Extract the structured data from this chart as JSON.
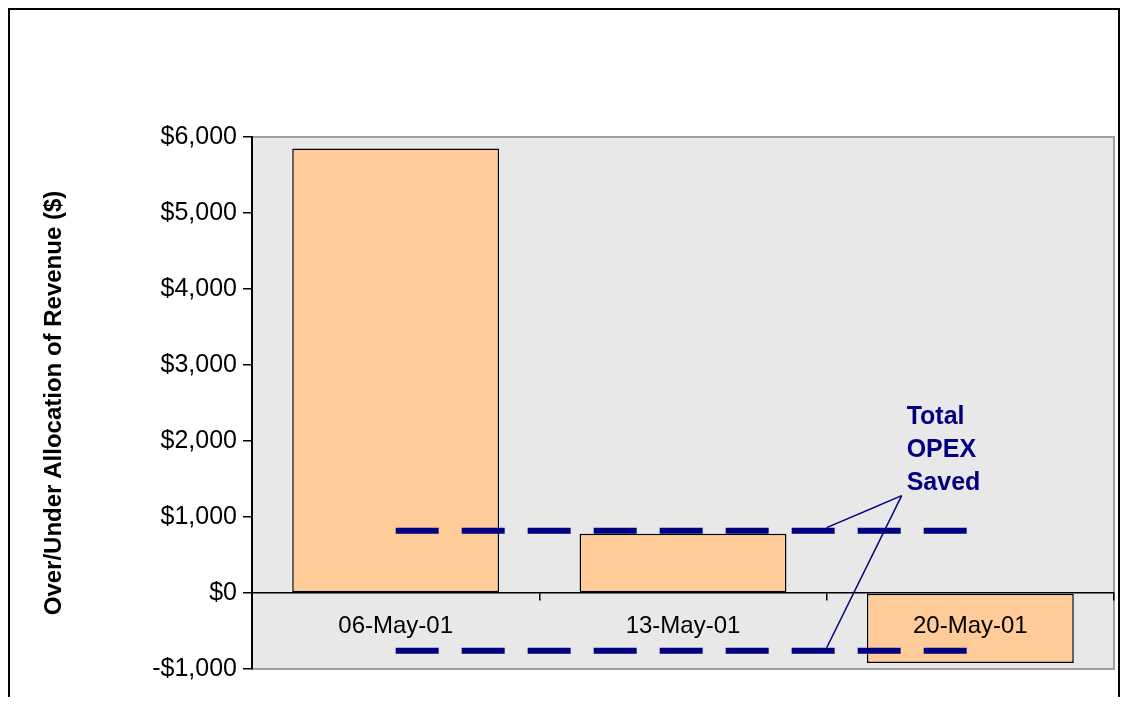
{
  "chart_data": {
    "type": "bar",
    "ylabel": "Over/Under Allocation of Revenue ($)",
    "categories": [
      "06-May-01",
      "13-May-01",
      "20-May-01"
    ],
    "series": [
      {
        "color": "#ffcc99",
        "values": [
          5850,
          780,
          -920
        ]
      },
      {
        "type": "line",
        "color": "#000080",
        "line_style": "dashed",
        "values": [
          820,
          820,
          820
        ]
      },
      {
        "type": "line",
        "color": "#000080",
        "line_style": "dashed",
        "values": [
          -760,
          -760,
          -760
        ]
      }
    ],
    "ylim": [
      -1000,
      6000
    ],
    "yticks": [
      {
        "value": -1000,
        "label": "-$1,000"
      },
      {
        "value": 0,
        "label": "$0"
      },
      {
        "value": 1000,
        "label": "$1,000"
      },
      {
        "value": 2000,
        "label": "$2,000"
      },
      {
        "value": 3000,
        "label": "$3,000"
      },
      {
        "value": 4000,
        "label": "$4,000"
      },
      {
        "value": 5000,
        "label": "$5,000"
      },
      {
        "value": 6000,
        "label": "$6,000"
      }
    ],
    "marker": "none",
    "annotations": [
      {
        "text": "Total OPEX Saved",
        "y": 820
      }
    ]
  }
}
